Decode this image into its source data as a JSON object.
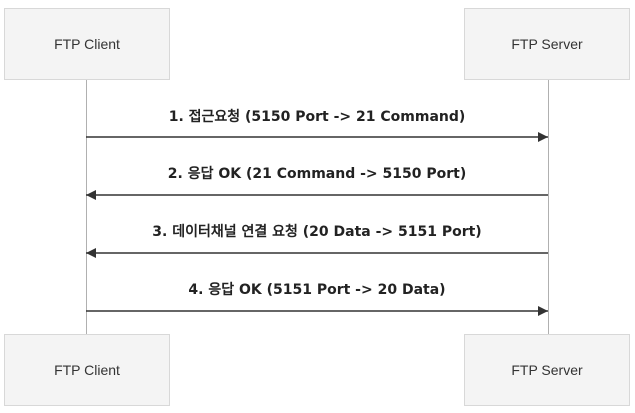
{
  "participants": {
    "client": {
      "top_label": "FTP Client",
      "bottom_label": "FTP Client"
    },
    "server": {
      "top_label": "FTP Server",
      "bottom_label": "FTP Server"
    }
  },
  "messages": [
    {
      "label": "1. 접근요청 (5150 Port -> 21 Command)",
      "from": "client",
      "to": "server"
    },
    {
      "label": "2. 응답 OK (21 Command -> 5150 Port)",
      "from": "server",
      "to": "client"
    },
    {
      "label": "3. 데이터채널 연결 요청 (20 Data -> 5151 Port)",
      "from": "server",
      "to": "client"
    },
    {
      "label": "4. 응답 OK (5151 Port -> 20 Data)",
      "from": "client",
      "to": "server"
    }
  ],
  "colors": {
    "line": "#333333",
    "lifeline": "#b0b0b0",
    "actor_bg": "#f4f4f4",
    "actor_border": "#d8d8d8"
  }
}
